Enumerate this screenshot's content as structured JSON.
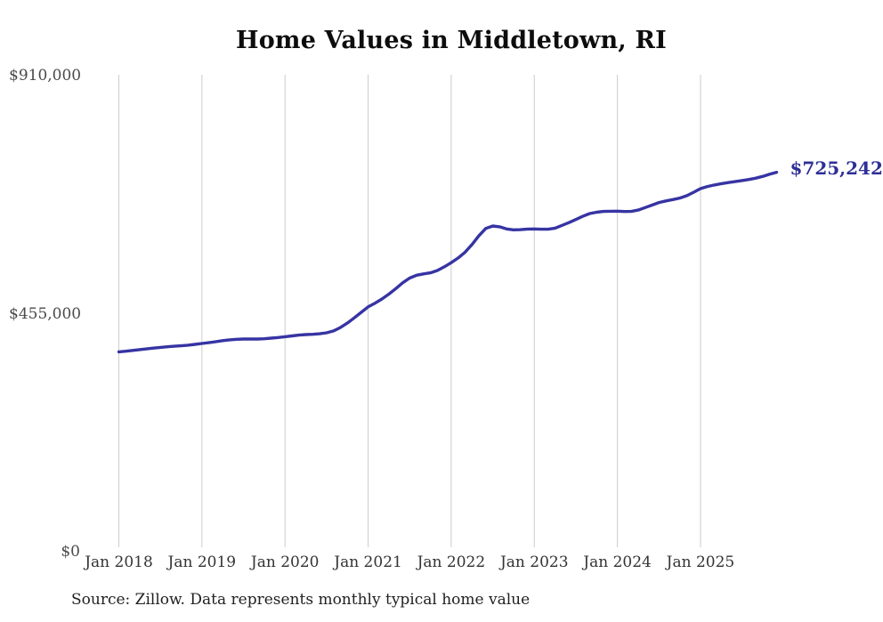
{
  "chart": {
    "title": "Home Values in Middletown, RI",
    "end_label": "$725,242",
    "source_note": "Source: Zillow. Data represents monthly typical home value",
    "line_color": "#3634a3",
    "label_color": "#2e2f96",
    "grid_color": "#cccccc"
  },
  "chart_data": {
    "type": "line",
    "title": "Home Values in Middletown, RI",
    "series_name": "Monthly typical home value (Zillow)",
    "xlabel": "",
    "ylabel": "",
    "ylim": [
      0,
      910000
    ],
    "grid": "vertical-only",
    "legend": "none",
    "x_ticks": [
      "Jan 2018",
      "Jan 2019",
      "Jan 2020",
      "Jan 2021",
      "Jan 2022",
      "Jan 2023",
      "Jan 2024",
      "Jan 2025"
    ],
    "y_ticks": [
      {
        "label": "$910,000",
        "value": 910000
      },
      {
        "label": "$455,000",
        "value": 455000
      },
      {
        "label": "$0",
        "value": 0
      }
    ],
    "annotation": {
      "text": "$725,242",
      "value": 725242,
      "x": "2025-12"
    },
    "source": "Source: Zillow. Data represents monthly typical home value",
    "x": [
      "2018-01",
      "2018-02",
      "2018-03",
      "2018-04",
      "2018-05",
      "2018-06",
      "2018-07",
      "2018-08",
      "2018-09",
      "2018-10",
      "2018-11",
      "2018-12",
      "2019-01",
      "2019-02",
      "2019-03",
      "2019-04",
      "2019-05",
      "2019-06",
      "2019-07",
      "2019-08",
      "2019-09",
      "2019-10",
      "2019-11",
      "2019-12",
      "2020-01",
      "2020-02",
      "2020-03",
      "2020-04",
      "2020-05",
      "2020-06",
      "2020-07",
      "2020-08",
      "2020-09",
      "2020-10",
      "2020-11",
      "2020-12",
      "2021-01",
      "2021-02",
      "2021-03",
      "2021-04",
      "2021-05",
      "2021-06",
      "2021-07",
      "2021-08",
      "2021-09",
      "2021-10",
      "2021-11",
      "2021-12",
      "2022-01",
      "2022-02",
      "2022-03",
      "2022-04",
      "2022-05",
      "2022-06",
      "2022-07",
      "2022-08",
      "2022-09",
      "2022-10",
      "2022-11",
      "2022-12",
      "2023-01",
      "2023-02",
      "2023-03",
      "2023-04",
      "2023-05",
      "2023-06",
      "2023-07",
      "2023-08",
      "2023-09",
      "2023-10",
      "2023-11",
      "2023-12",
      "2024-01",
      "2024-02",
      "2024-03",
      "2024-04",
      "2024-05",
      "2024-06",
      "2024-07",
      "2024-08",
      "2024-09",
      "2024-10",
      "2024-11",
      "2024-12",
      "2025-01",
      "2025-02",
      "2025-03",
      "2025-04",
      "2025-05",
      "2025-06",
      "2025-07",
      "2025-08",
      "2025-09",
      "2025-10",
      "2025-11",
      "2025-12"
    ],
    "values": [
      382000,
      383300,
      384700,
      386200,
      387700,
      389200,
      390600,
      391800,
      392800,
      393600,
      394800,
      396300,
      398000,
      399500,
      401500,
      403500,
      405000,
      406000,
      406500,
      406500,
      406500,
      407000,
      408200,
      409500,
      411000,
      412500,
      414000,
      415000,
      415500,
      416500,
      418500,
      422000,
      428500,
      437000,
      447000,
      457500,
      468000,
      475000,
      483000,
      492500,
      503000,
      514000,
      523000,
      528500,
      531000,
      533000,
      537500,
      544500,
      552500,
      561500,
      572500,
      587000,
      604000,
      618000,
      622500,
      621000,
      617000,
      615200,
      615500,
      616800,
      617000,
      616500,
      616400,
      618500,
      623700,
      629000,
      635000,
      641000,
      646400,
      648900,
      650400,
      650800,
      651000,
      650300,
      650500,
      653000,
      657800,
      662500,
      667400,
      670500,
      673000,
      676000,
      680400,
      687000,
      694000,
      698000,
      701000,
      703500,
      705500,
      707500,
      709500,
      711500,
      714000,
      717500,
      721500,
      725242
    ]
  }
}
